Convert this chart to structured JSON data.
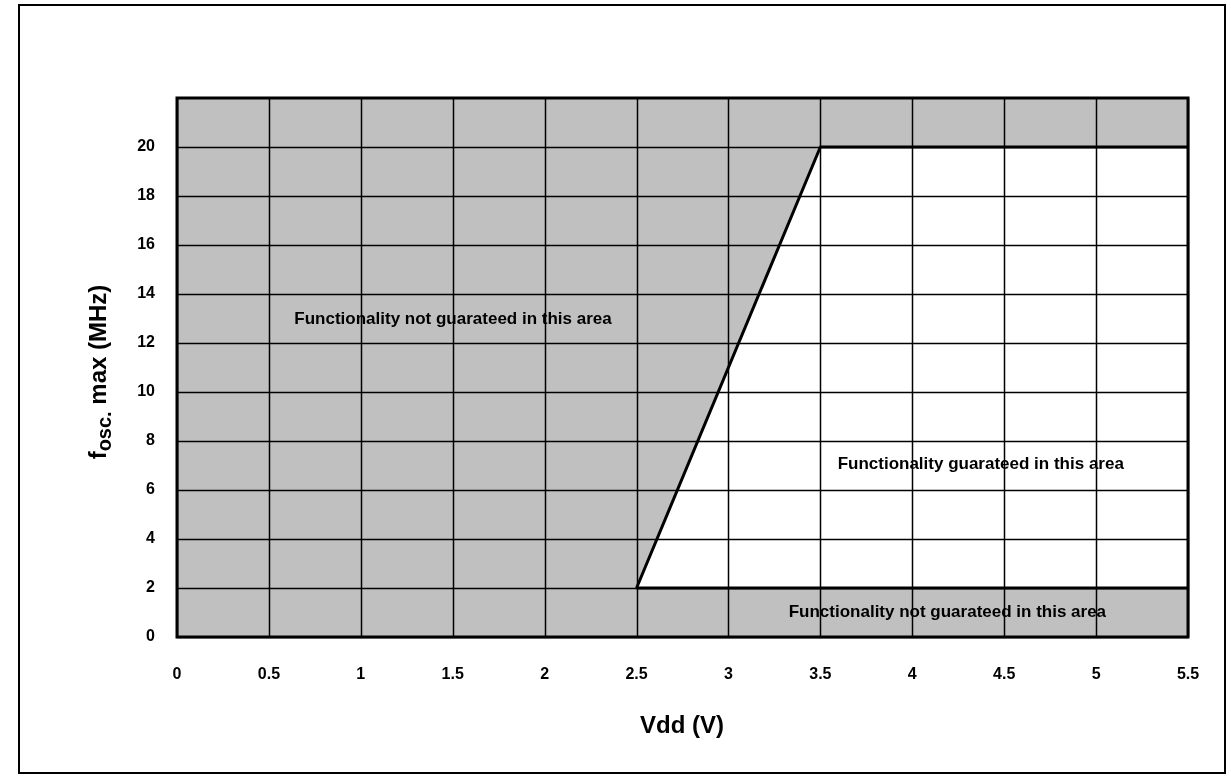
{
  "chart_data": {
    "type": "area",
    "xlabel": "Vdd (V)",
    "ylabel": "f$_{osc.}$ max (MHz)",
    "xlim": [
      0,
      5.5
    ],
    "xticks": [
      0,
      0.5,
      1,
      1.5,
      2,
      2.5,
      3,
      3.5,
      4,
      4.5,
      5,
      5.5
    ],
    "ylim": [
      0,
      22
    ],
    "yticks": [
      0,
      2,
      4,
      6,
      8,
      10,
      12,
      14,
      16,
      18,
      20
    ],
    "grid": true,
    "series": [
      {
        "color": "#ffffff",
        "x": [
          2.5,
          3.5,
          5.5
        ],
        "values": [
          2,
          20,
          20
        ]
      },
      {
        "type": "line",
        "color": "#000000",
        "x": [
          2.5,
          5.5
        ],
        "values": [
          2,
          2
        ]
      }
    ],
    "annotations": [
      "Functionality not guarateed in this area",
      "Functionality guarateed in this area",
      "Functionality not guarateed in this area"
    ]
  }
}
